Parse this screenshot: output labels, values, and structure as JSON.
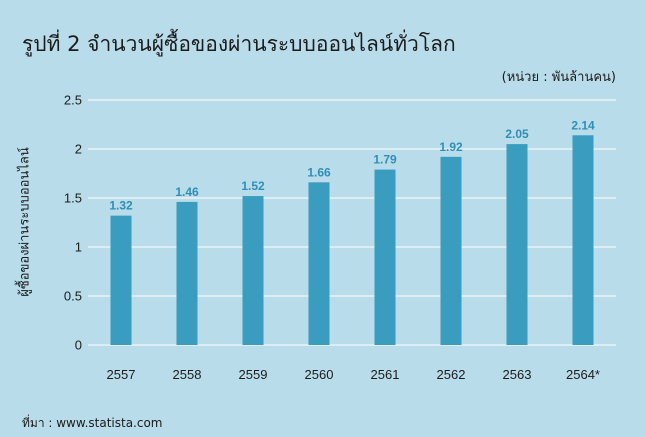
{
  "title": "รูปที่ 2 จำนวนผู้ซื้อของผ่านระบบออนไลน์ทั่วโลก",
  "unit_note": "(หน่วย : พันล้านคน)",
  "source": "ที่มา : www.statista.com",
  "colors": {
    "background": "#b9dcea",
    "bar": "#3a9dbf",
    "data_label": "#2e8fb6",
    "grid": "#ffffff",
    "text": "#1c1c1c"
  },
  "chart_data": {
    "type": "bar",
    "categories": [
      "2557",
      "2558",
      "2559",
      "2560",
      "2561",
      "2562",
      "2563",
      "2564*"
    ],
    "values": [
      1.32,
      1.46,
      1.52,
      1.66,
      1.79,
      1.92,
      2.05,
      2.14
    ],
    "value_labels": [
      "1.32",
      "1.46",
      "1.52",
      "1.66",
      "1.79",
      "1.92",
      "2.05",
      "2.14"
    ],
    "ylabel": "ผู้ซื้อของผ่านระบบออนไลน์",
    "xlabel": "",
    "ylim": [
      0,
      2.5
    ],
    "yticks": [
      0,
      0.5,
      1,
      1.5,
      2,
      2.5
    ],
    "ytick_labels": [
      "0",
      "0.5",
      "1",
      "1.5",
      "2",
      "2.5"
    ],
    "grid": true,
    "data_labels": true
  }
}
